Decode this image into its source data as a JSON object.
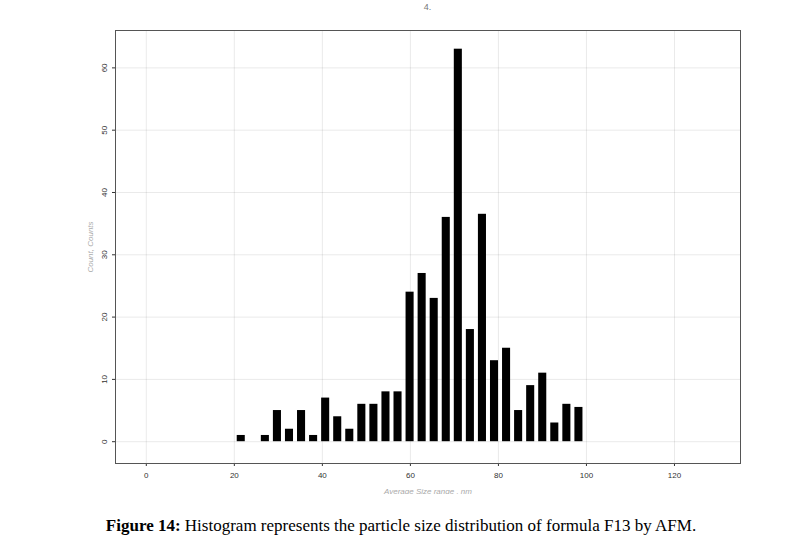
{
  "chart_data": {
    "type": "histogram",
    "title": "4.",
    "x_label": "Average Size range , nm",
    "y_label": "Count, Counts",
    "caption": "Figure 14: Histogram represents the particle size distribution of formula F13 by AFM.",
    "bins": [
      20.2,
      22.94,
      25.68,
      28.42,
      31.16,
      33.9,
      36.64,
      39.38,
      42.12,
      44.86,
      47.6,
      50.34,
      53.08,
      55.82,
      58.56,
      61.3,
      64.04,
      66.78,
      69.52,
      72.26,
      75.0,
      77.74,
      80.48,
      83.22,
      85.96,
      88.7,
      91.44,
      94.18,
      96.92,
      99.66
    ],
    "counts": [
      1,
      0,
      1,
      5,
      2,
      5,
      1,
      7,
      4,
      2,
      6,
      6,
      8,
      8,
      24,
      27,
      23,
      36,
      63,
      18,
      36.5,
      13,
      15,
      5,
      9,
      11,
      3,
      6,
      5.5
    ],
    "color": "#000000",
    "xlim": [
      -7,
      135
    ],
    "xticks": [
      0,
      20,
      40,
      60,
      80,
      100,
      120
    ],
    "ylim": [
      -3.5,
      66
    ],
    "yticks": [
      0,
      10,
      20,
      30,
      40,
      50,
      60
    ],
    "grid": true
  }
}
